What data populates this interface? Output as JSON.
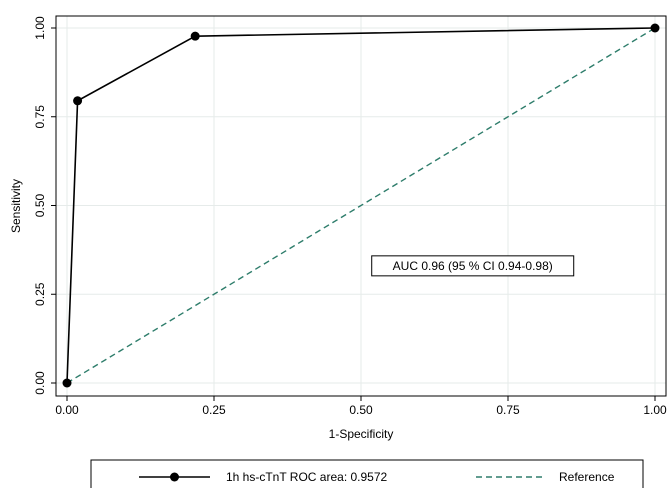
{
  "chart_data": {
    "type": "line",
    "title": "",
    "xlabel": "1-Specificity",
    "ylabel": "Sensitivity",
    "xlim": [
      0,
      1
    ],
    "ylim": [
      0,
      1
    ],
    "x_ticks": [
      0,
      0.25,
      0.5,
      0.75,
      1
    ],
    "x_tick_labels": [
      "0.00",
      "0.25",
      "0.50",
      "0.75",
      "1.00"
    ],
    "y_ticks": [
      0,
      0.25,
      0.5,
      0.75,
      1
    ],
    "y_tick_labels": [
      "0.00",
      "0.25",
      "0.50",
      "0.75",
      "1.00"
    ],
    "grid": true,
    "legend_position": "bottom",
    "series": [
      {
        "name": "1h hs-cTnT ROC area: 0.9572",
        "style": "solid-with-markers",
        "color": "#000000",
        "x": [
          0.0,
          0.018,
          0.218,
          1.0
        ],
        "y": [
          0.0,
          0.795,
          0.977,
          1.0
        ]
      },
      {
        "name": "Reference",
        "style": "dashed",
        "color": "#2e7d6b",
        "x": [
          0,
          1
        ],
        "y": [
          0,
          1
        ]
      }
    ],
    "annotations": [
      {
        "text": "AUC 0.96 (95 % CI 0.94-0.98)",
        "x": 0.69,
        "y": 0.33
      }
    ]
  }
}
